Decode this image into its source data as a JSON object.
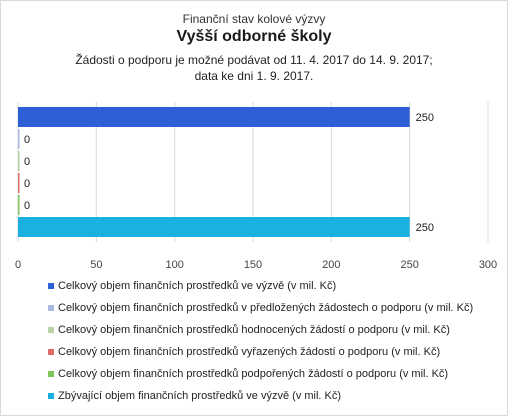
{
  "header": {
    "supertitle": "Finanční stav kolové výzvy",
    "title": "Vyšší odborné školy",
    "subtitle_line1": "Žádosti o podporu je možné podávat od 11. 4. 2017 do 14. 9. 2017;",
    "subtitle_line2": "data ke dni 1. 9. 2017."
  },
  "chart_data": {
    "type": "bar",
    "orientation": "horizontal",
    "title": "Vyšší odborné školy",
    "xlim": [
      0,
      300
    ],
    "xticks": [
      0,
      50,
      100,
      150,
      200,
      250,
      300
    ],
    "grid": true,
    "legend_position": "bottom-left",
    "series": [
      {
        "name": "Celkový objem finančních prostředků ve výzvě (v mil. Kč)",
        "value": 250,
        "label": "250",
        "color": "#2e5fd6"
      },
      {
        "name": "Celkový objem finančních prostředků v předložených žádostech o podporu (v mil. Kč)",
        "value": 0,
        "label": "0",
        "color": "#aab8de"
      },
      {
        "name": "Celkový objem finančních prostředků hodnocených žádostí o podporu (v mil. Kč)",
        "value": 0,
        "label": "0",
        "color": "#b8d3a8"
      },
      {
        "name": "Celkový objem finančních prostředků vyřazených žádostí o podporu (v mil. Kč)",
        "value": 0,
        "label": "0",
        "color": "#e06b6b"
      },
      {
        "name": "Celkový objem finančních prostředků podpořených žádostí o podporu (v mil. Kč)",
        "value": 0,
        "label": "0",
        "color": "#7cc65a"
      },
      {
        "name": "Zbývající objem finančních prostředků ve výzvě (v mil. Kč)",
        "value": 250,
        "label": "250",
        "color": "#1ab0e0"
      }
    ]
  }
}
